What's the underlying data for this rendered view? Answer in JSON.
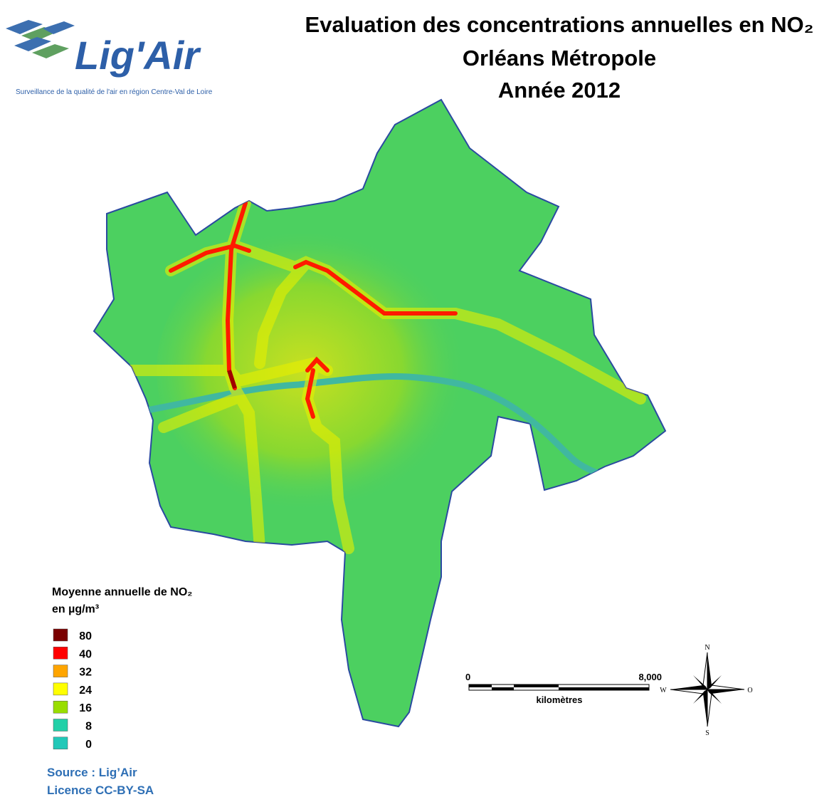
{
  "logo": {
    "name": "Lig'Air",
    "tagline": "Surveillance de la qualité de l'air en région Centre-Val de Loire"
  },
  "title": {
    "line1": "Evaluation des concentrations annuelles en NO₂",
    "line2": "Orléans Métropole",
    "line3": "Année 2012"
  },
  "legend": {
    "title": "Moyenne annuelle de NO₂",
    "unit": "en µg/m³",
    "items": [
      {
        "value": 80,
        "color": "#7a0000"
      },
      {
        "value": 40,
        "color": "#ff0000"
      },
      {
        "value": 32,
        "color": "#ffa500"
      },
      {
        "value": 24,
        "color": "#ffff00"
      },
      {
        "value": 16,
        "color": "#99dd00"
      },
      {
        "value": 8,
        "color": "#22d0a8"
      },
      {
        "value": 0,
        "color": "#22c8b8"
      }
    ]
  },
  "scale_bar": {
    "start": "0",
    "end": "8,000",
    "unit": "kilomètres"
  },
  "compass": {
    "north": "N",
    "south": "S",
    "west": "W",
    "east": "O"
  },
  "credits": {
    "source": "Source : Lig’Air",
    "licence": "Licence CC-BY-SA"
  }
}
